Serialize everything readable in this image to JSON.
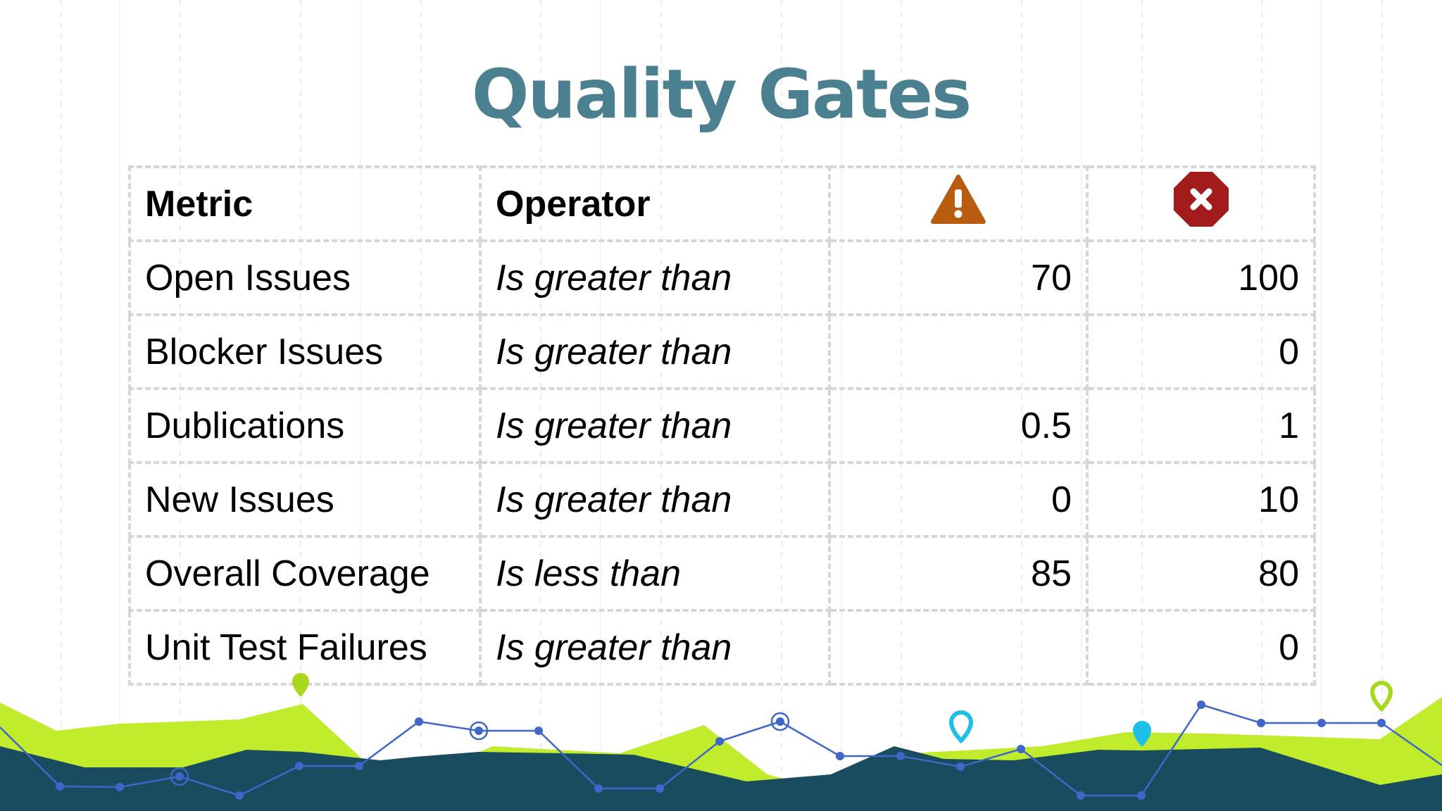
{
  "slide": {
    "title": "Quality Gates"
  },
  "table": {
    "headers": {
      "metric": "Metric",
      "operator": "Operator",
      "warning_icon": "warning-triangle-icon",
      "error_icon": "error-octagon-icon"
    },
    "rows": [
      {
        "metric": "Open Issues",
        "operator": "Is greater than",
        "warning": "70",
        "error": "100"
      },
      {
        "metric": "Blocker Issues",
        "operator": "Is greater than",
        "warning": "",
        "error": "0"
      },
      {
        "metric": "Dublications",
        "operator": "Is greater than",
        "warning": "0.5",
        "error": "1"
      },
      {
        "metric": "New Issues",
        "operator": "Is greater than",
        "warning": "0",
        "error": "10"
      },
      {
        "metric": "Overall Coverage",
        "operator": "Is less than",
        "warning": "85",
        "error": "80"
      },
      {
        "metric": "Unit Test Failures",
        "operator": "Is greater than",
        "warning": "",
        "error": "0"
      }
    ]
  },
  "colors": {
    "title": "#4a8090",
    "warning": "#b85c12",
    "error": "#a31c1c",
    "lime": "#c0ec2c",
    "navy": "#184c5e",
    "line": "#3f66c8",
    "cyan": "#1fc0e8"
  }
}
